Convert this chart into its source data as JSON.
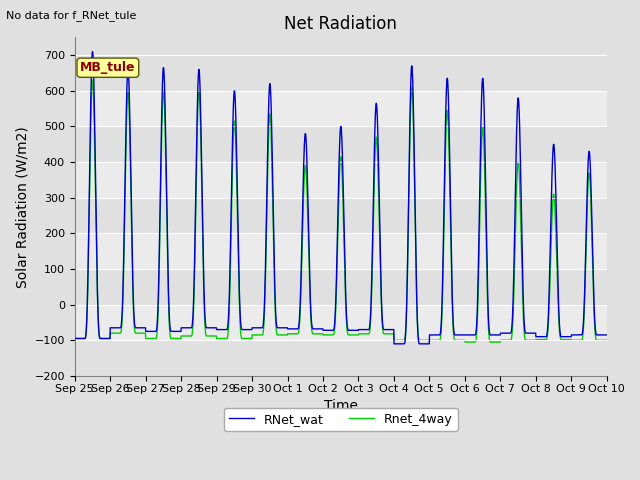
{
  "title": "Net Radiation",
  "top_left_text": "No data for f_RNet_tule",
  "annotation_text": "MB_tule",
  "ylabel": "Solar Radiation (W/m2)",
  "xlabel": "Time",
  "ylim": [
    -200,
    750
  ],
  "yticks": [
    -200,
    -100,
    0,
    100,
    200,
    300,
    400,
    500,
    600,
    700
  ],
  "line1_label": "RNet_wat",
  "line2_label": "Rnet_4way",
  "line1_color": "#0000CC",
  "line2_color": "#00CC00",
  "bg_color": "#E0E0E0",
  "stripe_light": "#EBEBEB",
  "annotation_bg": "#FFFF99",
  "annotation_border": "#8B0000",
  "num_days": 15,
  "day_peaks_blue": [
    710,
    660,
    665,
    660,
    600,
    620,
    480,
    500,
    565,
    670,
    635,
    635,
    580,
    450,
    430
  ],
  "day_peaks_green": [
    630,
    595,
    600,
    598,
    515,
    535,
    390,
    415,
    470,
    610,
    545,
    500,
    400,
    310,
    370
  ],
  "night_troughs_blue": [
    -95,
    -65,
    -75,
    -65,
    -70,
    -65,
    -68,
    -72,
    -70,
    -110,
    -85,
    -85,
    -80,
    -90,
    -85
  ],
  "night_troughs_green": [
    -95,
    -80,
    -95,
    -88,
    -95,
    -85,
    -82,
    -85,
    -82,
    -100,
    -100,
    -105,
    -100,
    -98,
    -100
  ],
  "x_tick_labels": [
    "Sep 25",
    "Sep 26",
    "Sep 27",
    "Sep 28",
    "Sep 29",
    "Sep 30",
    "Oct 1",
    "Oct 2",
    "Oct 3",
    "Oct 4",
    "Oct 5",
    "Oct 6",
    "Oct 7",
    "Oct 8",
    "Oct 9",
    "Oct 10"
  ],
  "title_fontsize": 12,
  "label_fontsize": 10,
  "tick_fontsize": 8,
  "legend_fontsize": 9,
  "annotation_fontsize": 9
}
